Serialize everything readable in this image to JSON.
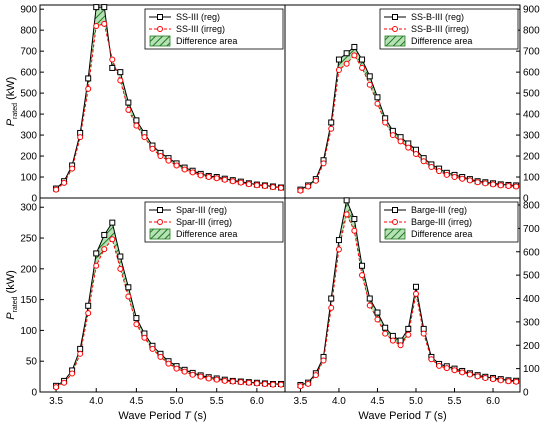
{
  "colors": {
    "regular": "#000000",
    "irregular": "#ff0000",
    "fill": "#2e8b2e"
  },
  "chart_data": [
    {
      "type": "line",
      "xlim": [
        3.3,
        6.35
      ],
      "ylim": [
        0,
        920
      ],
      "yticks": [
        0,
        100,
        200,
        300,
        400,
        500,
        600,
        700,
        800,
        900
      ],
      "x": [
        3.5,
        3.6,
        3.7,
        3.8,
        3.9,
        4.0,
        4.1,
        4.2,
        4.3,
        4.4,
        4.5,
        4.6,
        4.7,
        4.8,
        4.9,
        5.0,
        5.1,
        5.2,
        5.3,
        5.4,
        5.5,
        5.6,
        5.7,
        5.8,
        5.9,
        6.0,
        6.1,
        6.2,
        6.3
      ],
      "series": [
        {
          "name": "SS-III (reg)",
          "values": [
            45,
            80,
            155,
            310,
            570,
            910,
            910,
            620,
            600,
            455,
            370,
            310,
            250,
            215,
            190,
            165,
            145,
            130,
            115,
            105,
            100,
            92,
            85,
            78,
            70,
            64,
            60,
            55,
            50
          ]
        },
        {
          "name": "SS-III (irreg)",
          "values": [
            40,
            72,
            140,
            290,
            520,
            820,
            830,
            660,
            560,
            420,
            345,
            290,
            235,
            200,
            178,
            155,
            136,
            122,
            108,
            100,
            94,
            87,
            80,
            73,
            66,
            61,
            57,
            52,
            48
          ]
        }
      ],
      "legend": {
        "position": "top-right",
        "entries": [
          "SS-III (reg)",
          "SS-III (irreg)",
          "Difference area"
        ]
      },
      "ylabel": "P_rated (kW)",
      "xlabel": ""
    },
    {
      "type": "line",
      "xlim": [
        3.3,
        6.35
      ],
      "ylim": [
        0,
        920
      ],
      "yticks": [
        0,
        100,
        200,
        300,
        400,
        500,
        600,
        700,
        800,
        900
      ],
      "x": [
        3.5,
        3.6,
        3.7,
        3.8,
        3.9,
        4.0,
        4.1,
        4.2,
        4.3,
        4.4,
        4.5,
        4.6,
        4.7,
        4.8,
        4.9,
        5.0,
        5.1,
        5.2,
        5.3,
        5.4,
        5.5,
        5.6,
        5.7,
        5.8,
        5.9,
        6.0,
        6.1,
        6.2,
        6.3
      ],
      "series": [
        {
          "name": "SS-B-III (reg)",
          "values": [
            40,
            60,
            90,
            180,
            360,
            660,
            690,
            720,
            660,
            580,
            480,
            380,
            320,
            290,
            260,
            230,
            190,
            160,
            140,
            120,
            110,
            100,
            90,
            80,
            75,
            70,
            65,
            62,
            60
          ]
        },
        {
          "name": "SS-B-III (irreg)",
          "values": [
            35,
            55,
            82,
            165,
            330,
            610,
            640,
            680,
            620,
            540,
            450,
            360,
            300,
            270,
            240,
            210,
            175,
            148,
            128,
            110,
            100,
            92,
            84,
            75,
            70,
            65,
            60,
            57,
            55
          ]
        }
      ],
      "legend": {
        "position": "top-right",
        "entries": [
          "SS-B-III (reg)",
          "SS-B-III (irreg)",
          "Difference area"
        ]
      },
      "ylabel": "",
      "xlabel": ""
    },
    {
      "type": "line",
      "xlim": [
        3.3,
        6.35
      ],
      "ylim": [
        0,
        315
      ],
      "yticks": [
        0,
        50,
        100,
        150,
        200,
        250,
        300
      ],
      "xticks": [
        3.5,
        4.0,
        4.5,
        5.0,
        5.5,
        6.0
      ],
      "x": [
        3.5,
        3.6,
        3.7,
        3.8,
        3.9,
        4.0,
        4.1,
        4.2,
        4.3,
        4.4,
        4.5,
        4.6,
        4.7,
        4.8,
        4.9,
        5.0,
        5.1,
        5.2,
        5.3,
        5.4,
        5.5,
        5.6,
        5.7,
        5.8,
        5.9,
        6.0,
        6.1,
        6.2,
        6.3
      ],
      "series": [
        {
          "name": "Spar-III (reg)",
          "values": [
            10,
            18,
            35,
            70,
            140,
            225,
            255,
            275,
            220,
            170,
            120,
            95,
            75,
            62,
            50,
            42,
            36,
            31,
            27,
            24,
            22,
            20,
            18,
            17,
            16,
            15,
            14,
            13,
            13
          ]
        },
        {
          "name": "Spar-III (irreg)",
          "values": [
            8,
            15,
            30,
            62,
            128,
            205,
            232,
            248,
            200,
            155,
            110,
            88,
            70,
            57,
            46,
            38,
            33,
            28,
            25,
            22,
            20,
            18,
            17,
            16,
            15,
            14,
            13,
            12,
            12
          ]
        }
      ],
      "legend": {
        "position": "top-right",
        "entries": [
          "Spar-III (reg)",
          "Spar-III (irreg)",
          "Difference area"
        ]
      },
      "ylabel": "P_rated (kW)",
      "xlabel": "Wave Period T (s)"
    },
    {
      "type": "line",
      "xlim": [
        3.3,
        6.35
      ],
      "ylim": [
        0,
        830
      ],
      "yticks": [
        0,
        100,
        200,
        300,
        400,
        500,
        600,
        700,
        800
      ],
      "xticks": [
        3.5,
        4.0,
        4.5,
        5.0,
        5.5,
        6.0
      ],
      "x": [
        3.5,
        3.6,
        3.7,
        3.8,
        3.9,
        4.0,
        4.1,
        4.2,
        4.3,
        4.4,
        4.5,
        4.6,
        4.7,
        4.8,
        4.9,
        5.0,
        5.1,
        5.2,
        5.3,
        5.4,
        5.5,
        5.6,
        5.7,
        5.8,
        5.9,
        6.0,
        6.1,
        6.2,
        6.3
      ],
      "series": [
        {
          "name": "Barge-III (reg)",
          "values": [
            30,
            40,
            80,
            150,
            400,
            650,
            820,
            740,
            540,
            400,
            340,
            275,
            240,
            220,
            270,
            450,
            270,
            150,
            120,
            110,
            100,
            90,
            80,
            72,
            65,
            60,
            55,
            50,
            48
          ]
        },
        {
          "name": "Barge-III (irreg)",
          "values": [
            25,
            35,
            72,
            135,
            360,
            610,
            760,
            690,
            500,
            370,
            310,
            250,
            220,
            200,
            245,
            420,
            250,
            140,
            112,
            102,
            93,
            84,
            75,
            67,
            60,
            55,
            50,
            46,
            44
          ]
        }
      ],
      "legend": {
        "position": "top-right",
        "entries": [
          "Barge-III (reg)",
          "Barge-III (irreg)",
          "Difference area"
        ]
      },
      "ylabel": "",
      "xlabel": "Wave Period T (s)"
    }
  ]
}
